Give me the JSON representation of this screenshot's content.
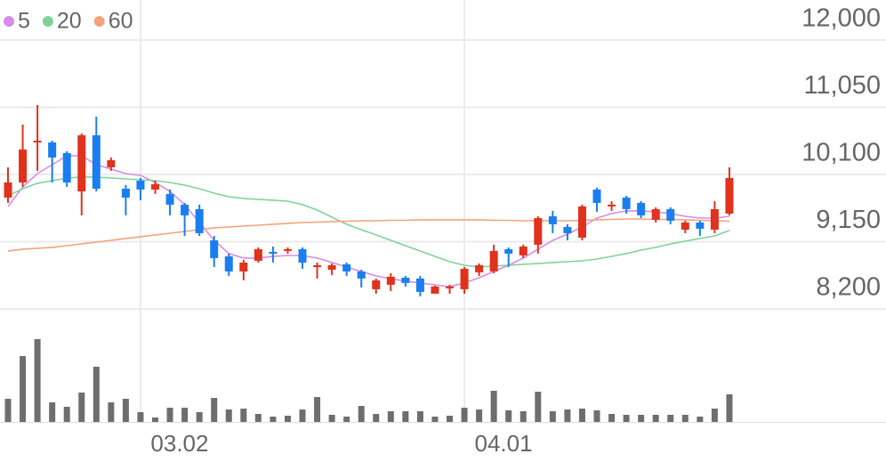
{
  "chart_data": {
    "type": "candlestick",
    "x": [
      null,
      null,
      null,
      null,
      null,
      null,
      null,
      null,
      null,
      "03.02",
      null,
      null,
      null,
      null,
      null,
      null,
      null,
      null,
      null,
      null,
      null,
      null,
      null,
      null,
      null,
      null,
      null,
      null,
      null,
      null,
      null,
      "04.01",
      null,
      null,
      null,
      null,
      null,
      null,
      null,
      null,
      null,
      null,
      null,
      null,
      null,
      null,
      null,
      null,
      null,
      null
    ],
    "open": [
      9773,
      9987,
      10553,
      10553,
      10402,
      9861,
      10654,
      10201,
      9899,
      10012,
      9887,
      9824,
      9673,
      9610,
      9170,
      8943,
      8729,
      8880,
      9006,
      9019,
      9044,
      8792,
      8754,
      8830,
      8729,
      8478,
      8541,
      8641,
      8629,
      8415,
      8490,
      8478,
      8717,
      8729,
      9044,
      8956,
      9107,
      9509,
      9358,
      9207,
      9887,
      9648,
      9773,
      9698,
      9459,
      9610,
      9320,
      9421,
      9320,
      9547
    ],
    "high": [
      10201,
      10805,
      11082,
      10578,
      10428,
      10679,
      10918,
      10340,
      9950,
      10050,
      10012,
      9887,
      9698,
      9673,
      9232,
      8981,
      8893,
      9069,
      9081,
      9069,
      9069,
      8855,
      8842,
      8855,
      8754,
      8629,
      8704,
      8666,
      8666,
      8528,
      8541,
      8792,
      8842,
      9107,
      9069,
      9107,
      9509,
      9585,
      9396,
      9673,
      9912,
      9723,
      9798,
      9723,
      9635,
      9635,
      9446,
      9446,
      9723,
      10201
    ],
    "low": [
      9698,
      9924,
      10151,
      9987,
      9924,
      9522,
      9861,
      10151,
      9522,
      9736,
      9824,
      9522,
      9232,
      9232,
      8792,
      8666,
      8603,
      8855,
      8855,
      8981,
      8767,
      8629,
      8679,
      8666,
      8503,
      8415,
      8452,
      8516,
      8377,
      8415,
      8415,
      8415,
      8666,
      8704,
      8792,
      8918,
      8981,
      9270,
      9170,
      9170,
      9572,
      9585,
      9547,
      9484,
      9421,
      9396,
      9270,
      9232,
      9270,
      9522
    ],
    "close": [
      9987,
      10453,
      10578,
      10340,
      9987,
      10654,
      9899,
      10302,
      9773,
      9887,
      9962,
      9673,
      9522,
      9270,
      8918,
      8729,
      8855,
      9044,
      8981,
      9044,
      8855,
      8817,
      8817,
      8729,
      8629,
      8603,
      8654,
      8566,
      8440,
      8516,
      8516,
      8767,
      8817,
      9019,
      8981,
      9081,
      9484,
      9396,
      9270,
      9648,
      9698,
      9673,
      9610,
      9522,
      9610,
      9446,
      9421,
      9333,
      9610,
      10050
    ],
    "up_color": "#e0321c",
    "down_color": "#1a7ef0",
    "series": [
      {
        "name": "5",
        "color": "#d88be8",
        "values": [
          9647,
          9924,
          10113,
          10239,
          10364,
          10364,
          10239,
          10176,
          10113,
          10088,
          9987,
          9861,
          9673,
          9421,
          9169,
          8981,
          8918,
          8918,
          8943,
          8955,
          8955,
          8918,
          8855,
          8792,
          8729,
          8666,
          8628,
          8591,
          8566,
          8540,
          8515,
          8566,
          8641,
          8729,
          8817,
          8918,
          9044,
          9169,
          9257,
          9358,
          9484,
          9547,
          9585,
          9585,
          9572,
          9547,
          9509,
          9484,
          9484,
          9509
        ]
      },
      {
        "name": "20",
        "color": "#7fd398",
        "values": [
          9798,
          9899,
          9975,
          10012,
          10050,
          10063,
          10063,
          10050,
          10037,
          10025,
          10012,
          9987,
          9949,
          9899,
          9836,
          9786,
          9761,
          9748,
          9736,
          9723,
          9673,
          9597,
          9496,
          9396,
          9320,
          9245,
          9169,
          9094,
          9018,
          8943,
          8867,
          8817,
          8792,
          8805,
          8817,
          8830,
          8842,
          8855,
          8867,
          8880,
          8905,
          8943,
          8981,
          9031,
          9069,
          9119,
          9157,
          9195,
          9232,
          9308
        ]
      },
      {
        "name": "60",
        "color": "#f5a27a",
        "values": [
          9018,
          9044,
          9057,
          9069,
          9094,
          9119,
          9144,
          9169,
          9195,
          9220,
          9245,
          9270,
          9295,
          9320,
          9346,
          9358,
          9371,
          9383,
          9396,
          9409,
          9421,
          9427,
          9434,
          9440,
          9446,
          9446,
          9452,
          9452,
          9459,
          9459,
          9459,
          9459,
          9459,
          9452,
          9452,
          9446,
          9446,
          9446,
          9446,
          9452,
          9459,
          9465,
          9471,
          9471,
          9465,
          9465,
          9459,
          9452,
          9446,
          9440
        ]
      }
    ],
    "volume": [
      26,
      74,
      93,
      22,
      17,
      33,
      62,
      22,
      26,
      11,
      5,
      16,
      16,
      11,
      27,
      14,
      15,
      9,
      6,
      7,
      14,
      28,
      8,
      6,
      18,
      9,
      12,
      12,
      12,
      6,
      7,
      16,
      14,
      35,
      13,
      12,
      34,
      12,
      14,
      15,
      13,
      9,
      8,
      8,
      8,
      8,
      8,
      6,
      15,
      31
    ],
    "volume_color": "#6e6e6e",
    "volume_lim": [
      0,
      100
    ],
    "ylim": [
      8200,
      12000
    ],
    "yticks": [
      {
        "value": 8200,
        "label": "8,200"
      },
      {
        "value": 9150,
        "label": "9,150"
      },
      {
        "value": 10100,
        "label": "10,100"
      },
      {
        "value": 11050,
        "label": "11,050"
      },
      {
        "value": 12000,
        "label": "12,000"
      }
    ],
    "grid": true,
    "legend": "top-left"
  }
}
